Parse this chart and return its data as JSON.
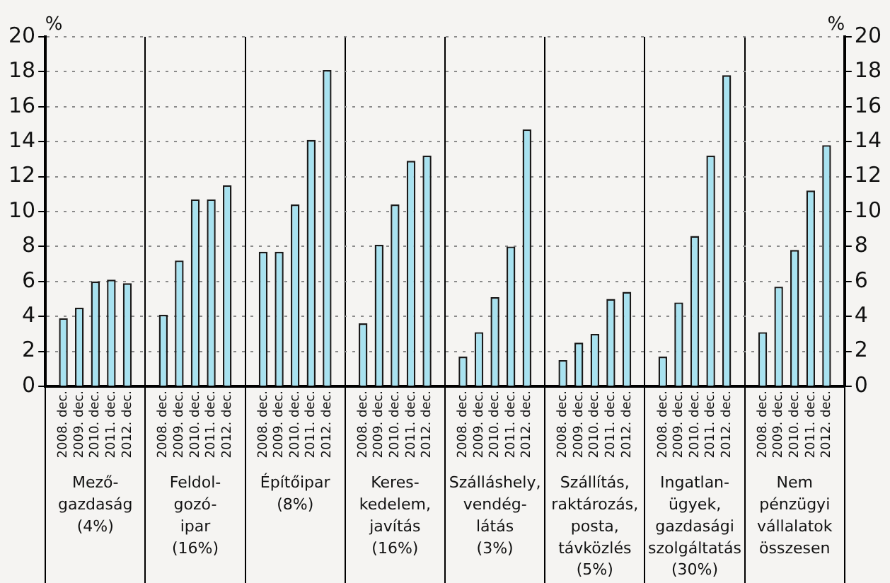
{
  "chart_data": {
    "type": "bar",
    "ylabel": "%",
    "y2label": "%",
    "categories": [
      "Mező-\ngazdaság\n(4%)",
      "Feldol-\ngozó-\nipar\n(16%)",
      "Építőipar\n(8%)",
      "Keres-\nkedelem,\njavítás\n(16%)",
      "Szálláshely,\nvendég-\nlátás\n(3%)",
      "Szállítás,\nraktározás,\nposta,\ntávközlés\n(5%)",
      "Ingatlan-\nügyek,\ngazdasági\nszolgáltatás\n(30%)",
      "Nem\npénzügyi\nvállalatok\nösszesen"
    ],
    "series": [
      {
        "name": "2008. dec.",
        "color": "#a8e2f0",
        "values": [
          3.9,
          4.1,
          7.7,
          3.6,
          1.7,
          1.5,
          1.7,
          3.1
        ]
      },
      {
        "name": "2009. dec.",
        "color": "#a8e2f0",
        "values": [
          4.5,
          7.2,
          7.7,
          8.1,
          3.1,
          2.5,
          4.8,
          5.7
        ]
      },
      {
        "name": "2010. dec.",
        "color": "#a8e2f0",
        "values": [
          6.0,
          10.7,
          10.4,
          10.4,
          5.1,
          3.0,
          8.6,
          7.8
        ]
      },
      {
        "name": "2011. dec.",
        "color": "#a8e2f0",
        "values": [
          6.1,
          10.7,
          14.1,
          12.9,
          8.0,
          5.0,
          13.2,
          11.2
        ]
      },
      {
        "name": "2012. dec.",
        "color": "#a8e2f0",
        "values": [
          5.9,
          11.5,
          18.1,
          13.2,
          14.7,
          5.4,
          17.8,
          13.8
        ]
      }
    ],
    "ylim": [
      0,
      20
    ],
    "yticks": [
      0,
      2,
      4,
      6,
      8,
      10,
      12,
      14,
      16,
      18,
      20
    ],
    "y2lim": [
      0,
      20
    ],
    "y2ticks": [
      0,
      2,
      4,
      6,
      8,
      10,
      12,
      14,
      16,
      18,
      20
    ],
    "grid": "y",
    "legend": false
  }
}
